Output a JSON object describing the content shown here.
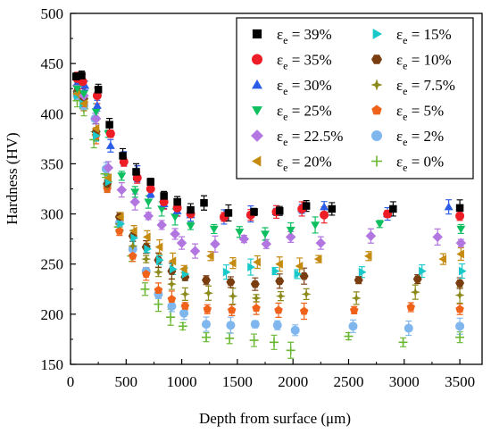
{
  "chart_data": {
    "type": "scatter",
    "title": "",
    "xlabel": "Depth from surface  (μm)",
    "ylabel": "Hardness  (HV)",
    "xlim": [
      0,
      3700
    ],
    "ylim": [
      150,
      500
    ],
    "xticks": [
      0,
      500,
      1000,
      1500,
      2000,
      2500,
      3000,
      3500
    ],
    "yticks": [
      150,
      200,
      250,
      300,
      350,
      400,
      450,
      500
    ],
    "legend_position": "top-right",
    "grid": false,
    "series": [
      {
        "name": "εe = 39%",
        "label_prefix": "ε",
        "label_sub": "e",
        "label_suffix": " = 39%",
        "marker": "square",
        "color": "#000000",
        "points": [
          [
            50,
            437
          ],
          [
            100,
            438
          ],
          [
            250,
            424
          ],
          [
            350,
            389
          ],
          [
            470,
            358
          ],
          [
            590,
            342
          ],
          [
            720,
            332
          ],
          [
            840,
            318
          ],
          [
            960,
            312
          ],
          [
            1080,
            304
          ],
          [
            1200,
            311
          ],
          [
            1420,
            301
          ],
          [
            1650,
            302
          ],
          [
            1880,
            303
          ],
          [
            2120,
            308
          ],
          [
            2350,
            305
          ],
          [
            2900,
            305
          ],
          [
            3500,
            306
          ]
        ]
      },
      {
        "name": "εe = 35%",
        "label_prefix": "ε",
        "label_sub": "e",
        "label_suffix": " = 35%",
        "marker": "circle",
        "color": "#ee1c24",
        "points": [
          [
            60,
            435
          ],
          [
            110,
            432
          ],
          [
            240,
            418
          ],
          [
            360,
            380
          ],
          [
            480,
            352
          ],
          [
            600,
            336
          ],
          [
            720,
            325
          ],
          [
            840,
            312
          ],
          [
            960,
            306
          ],
          [
            1080,
            300
          ],
          [
            1380,
            297
          ],
          [
            1620,
            299
          ],
          [
            1850,
            302
          ],
          [
            2080,
            305
          ],
          [
            2280,
            299
          ],
          [
            2850,
            300
          ],
          [
            3500,
            298
          ]
        ]
      },
      {
        "name": "εe = 30%",
        "label_prefix": "ε",
        "label_sub": "e",
        "label_suffix": " = 30%",
        "marker": "triangle-up",
        "color": "#2a5ce8",
        "points": [
          [
            70,
            432
          ],
          [
            130,
            428
          ],
          [
            240,
            408
          ],
          [
            360,
            368
          ],
          [
            480,
            355
          ],
          [
            600,
            340
          ],
          [
            720,
            320
          ],
          [
            840,
            310
          ],
          [
            960,
            303
          ],
          [
            1080,
            299
          ],
          [
            1380,
            297
          ],
          [
            1620,
            300
          ],
          [
            1850,
            302
          ],
          [
            2080,
            305
          ],
          [
            2280,
            307
          ],
          [
            2850,
            300
          ],
          [
            3400,
            307
          ]
        ]
      },
      {
        "name": "εe = 25%",
        "label_prefix": "ε",
        "label_sub": "e",
        "label_suffix": " = 25%",
        "marker": "triangle-down",
        "color": "#0dbf5f",
        "points": [
          [
            60,
            425
          ],
          [
            120,
            420
          ],
          [
            230,
            402
          ],
          [
            340,
            380
          ],
          [
            460,
            338
          ],
          [
            580,
            322
          ],
          [
            700,
            312
          ],
          [
            820,
            305
          ],
          [
            940,
            297
          ],
          [
            1080,
            288
          ],
          [
            1290,
            285
          ],
          [
            1520,
            282
          ],
          [
            1750,
            280
          ],
          [
            1980,
            284
          ],
          [
            2200,
            289
          ],
          [
            2780,
            290
          ],
          [
            3510,
            285
          ]
        ]
      },
      {
        "name": "εe = 22.5%",
        "label_prefix": "ε",
        "label_sub": "e",
        "label_suffix": " = 22.5%",
        "marker": "diamond",
        "color": "#b276e0",
        "points": [
          [
            60,
            428
          ],
          [
            120,
            418
          ],
          [
            230,
            395
          ],
          [
            340,
            346
          ],
          [
            460,
            324
          ],
          [
            580,
            312
          ],
          [
            700,
            298
          ],
          [
            820,
            289
          ],
          [
            940,
            280
          ],
          [
            1000,
            271
          ],
          [
            1120,
            263
          ],
          [
            1300,
            270
          ],
          [
            1560,
            275
          ],
          [
            1760,
            270
          ],
          [
            1980,
            277
          ],
          [
            2250,
            271
          ],
          [
            2700,
            278
          ],
          [
            3300,
            277
          ],
          [
            3510,
            271
          ]
        ]
      },
      {
        "name": "εe = 20%",
        "label_prefix": "ε",
        "label_sub": "e",
        "label_suffix": " = 20%",
        "marker": "triangle-left",
        "color": "#c58a10",
        "points": [
          [
            60,
            420
          ],
          [
            120,
            410
          ],
          [
            230,
            385
          ],
          [
            340,
            336
          ],
          [
            450,
            297
          ],
          [
            570,
            283
          ],
          [
            690,
            277
          ],
          [
            800,
            267
          ],
          [
            920,
            253
          ],
          [
            1020,
            245
          ],
          [
            1260,
            258
          ],
          [
            1460,
            251
          ],
          [
            1680,
            252
          ],
          [
            1880,
            250
          ],
          [
            2060,
            248
          ],
          [
            2230,
            255
          ],
          [
            2680,
            258
          ],
          [
            3350,
            255
          ],
          [
            3510,
            260
          ]
        ]
      },
      {
        "name": "εe = 15%",
        "label_prefix": "ε",
        "label_sub": "e",
        "label_suffix": " = 15%",
        "marker": "triangle-right",
        "color": "#19c8c8",
        "points": [
          [
            60,
            418
          ],
          [
            110,
            410
          ],
          [
            230,
            378
          ],
          [
            340,
            332
          ],
          [
            450,
            290
          ],
          [
            570,
            276
          ],
          [
            690,
            265
          ],
          [
            800,
            254
          ],
          [
            920,
            245
          ],
          [
            1030,
            240
          ],
          [
            1400,
            242
          ],
          [
            1620,
            247
          ],
          [
            1840,
            243
          ],
          [
            2040,
            240
          ],
          [
            2620,
            242
          ],
          [
            3160,
            243
          ],
          [
            3520,
            243
          ]
        ]
      },
      {
        "name": "εe = 10%",
        "label_prefix": "ε",
        "label_sub": "e",
        "label_suffix": " = 10%",
        "marker": "hexagon",
        "color": "#7a3d10",
        "points": [
          [
            60,
            422
          ],
          [
            120,
            415
          ],
          [
            230,
            382
          ],
          [
            330,
            330
          ],
          [
            440,
            297
          ],
          [
            560,
            278
          ],
          [
            680,
            267
          ],
          [
            790,
            254
          ],
          [
            910,
            243
          ],
          [
            1030,
            237
          ],
          [
            1220,
            234
          ],
          [
            1440,
            232
          ],
          [
            1660,
            230
          ],
          [
            1880,
            233
          ],
          [
            2100,
            238
          ],
          [
            2590,
            234
          ],
          [
            3120,
            235
          ],
          [
            3500,
            231
          ]
        ]
      },
      {
        "name": "εe = 7.5%",
        "label_prefix": "ε",
        "label_sub": "e",
        "label_suffix": " = 7.5%",
        "marker": "star",
        "color": "#8c8a1a",
        "points": [
          [
            60,
            420
          ],
          [
            120,
            412
          ],
          [
            230,
            379
          ],
          [
            330,
            328
          ],
          [
            440,
            290
          ],
          [
            560,
            268
          ],
          [
            680,
            255
          ],
          [
            790,
            242
          ],
          [
            910,
            230
          ],
          [
            1030,
            220
          ],
          [
            1240,
            221
          ],
          [
            1460,
            218
          ],
          [
            1670,
            216
          ],
          [
            1890,
            218
          ],
          [
            2120,
            220
          ],
          [
            2570,
            216
          ],
          [
            3100,
            222
          ],
          [
            3500,
            219
          ]
        ]
      },
      {
        "name": "εe = 5%",
        "label_prefix": "ε",
        "label_sub": "e",
        "label_suffix": " = 5%",
        "marker": "pentagon",
        "color": "#f0621a",
        "points": [
          [
            60,
            419
          ],
          [
            120,
            410
          ],
          [
            230,
            378
          ],
          [
            330,
            325
          ],
          [
            440,
            283
          ],
          [
            560,
            258
          ],
          [
            680,
            240
          ],
          [
            790,
            224
          ],
          [
            910,
            215
          ],
          [
            1030,
            208
          ],
          [
            1230,
            205
          ],
          [
            1450,
            204
          ],
          [
            1670,
            206
          ],
          [
            1870,
            204
          ],
          [
            2100,
            203
          ],
          [
            2550,
            204
          ],
          [
            3060,
            207
          ],
          [
            3500,
            205
          ]
        ]
      },
      {
        "name": "εe = 2%",
        "label_prefix": "ε",
        "label_sub": "e",
        "label_suffix": " = 2%",
        "marker": "circle",
        "color": "#7fb6ee",
        "points": [
          [
            60,
            418
          ],
          [
            120,
            408
          ],
          [
            220,
            395
          ],
          [
            320,
            345
          ],
          [
            440,
            291
          ],
          [
            560,
            265
          ],
          [
            680,
            243
          ],
          [
            790,
            220
          ],
          [
            910,
            208
          ],
          [
            1020,
            201
          ],
          [
            1220,
            190
          ],
          [
            1440,
            189
          ],
          [
            1660,
            190
          ],
          [
            1860,
            189
          ],
          [
            2020,
            184
          ],
          [
            2540,
            188
          ],
          [
            3040,
            186
          ],
          [
            3500,
            188
          ]
        ]
      },
      {
        "name": "εe = 0%",
        "label_prefix": "ε",
        "label_sub": "e",
        "label_suffix": " = 0%",
        "marker": "plus",
        "color": "#6ab832",
        "points": [
          [
            60,
            413
          ],
          [
            120,
            405
          ],
          [
            210,
            374
          ],
          [
            310,
            340
          ],
          [
            430,
            287
          ],
          [
            550,
            258
          ],
          [
            670,
            225
          ],
          [
            790,
            210
          ],
          [
            900,
            197
          ],
          [
            1010,
            188
          ],
          [
            1220,
            177
          ],
          [
            1430,
            176
          ],
          [
            1650,
            174
          ],
          [
            1830,
            172
          ],
          [
            1980,
            164
          ],
          [
            2500,
            178
          ],
          [
            2990,
            172
          ],
          [
            3500,
            177
          ]
        ]
      }
    ]
  }
}
